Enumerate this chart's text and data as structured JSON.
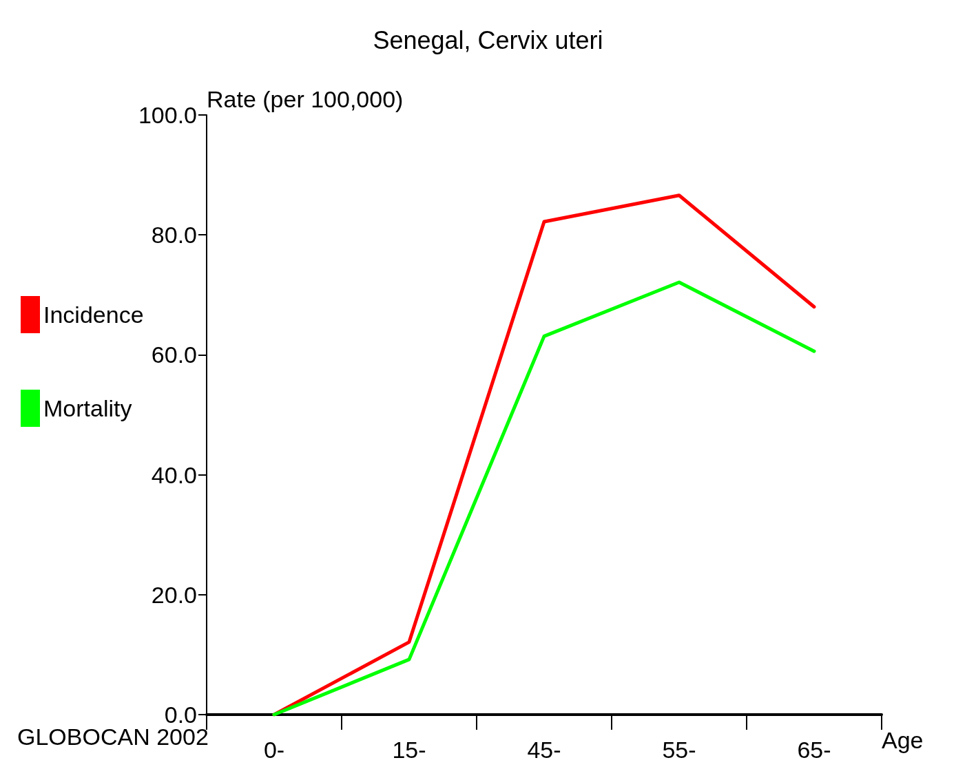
{
  "chart_data": {
    "type": "line",
    "title": "Senegal, Cervix uteri",
    "ylabel": "Rate (per 100,000)",
    "xlabel": "Age",
    "categories": [
      "0-",
      "15-",
      "45-",
      "55-",
      "65-"
    ],
    "series": [
      {
        "name": "Incidence",
        "color": "#ff0000",
        "values": [
          0,
          12.1,
          82.2,
          86.6,
          68.0
        ]
      },
      {
        "name": "Mortality",
        "color": "#00ff00",
        "values": [
          0,
          9.2,
          63.1,
          72.1,
          60.6
        ]
      }
    ],
    "ylim": [
      0,
      100
    ],
    "yticks": [
      {
        "value": 0,
        "label": "0.0"
      },
      {
        "value": 20,
        "label": "20.0"
      },
      {
        "value": 40,
        "label": "40.0"
      },
      {
        "value": 60,
        "label": "60.0"
      },
      {
        "value": 80,
        "label": "80.0"
      },
      {
        "value": 100,
        "label": "100.0"
      }
    ],
    "grid": false,
    "legend": "left",
    "marker": "none",
    "line_style": "solid",
    "annotations": [
      "GLOBOCAN 2002"
    ]
  }
}
